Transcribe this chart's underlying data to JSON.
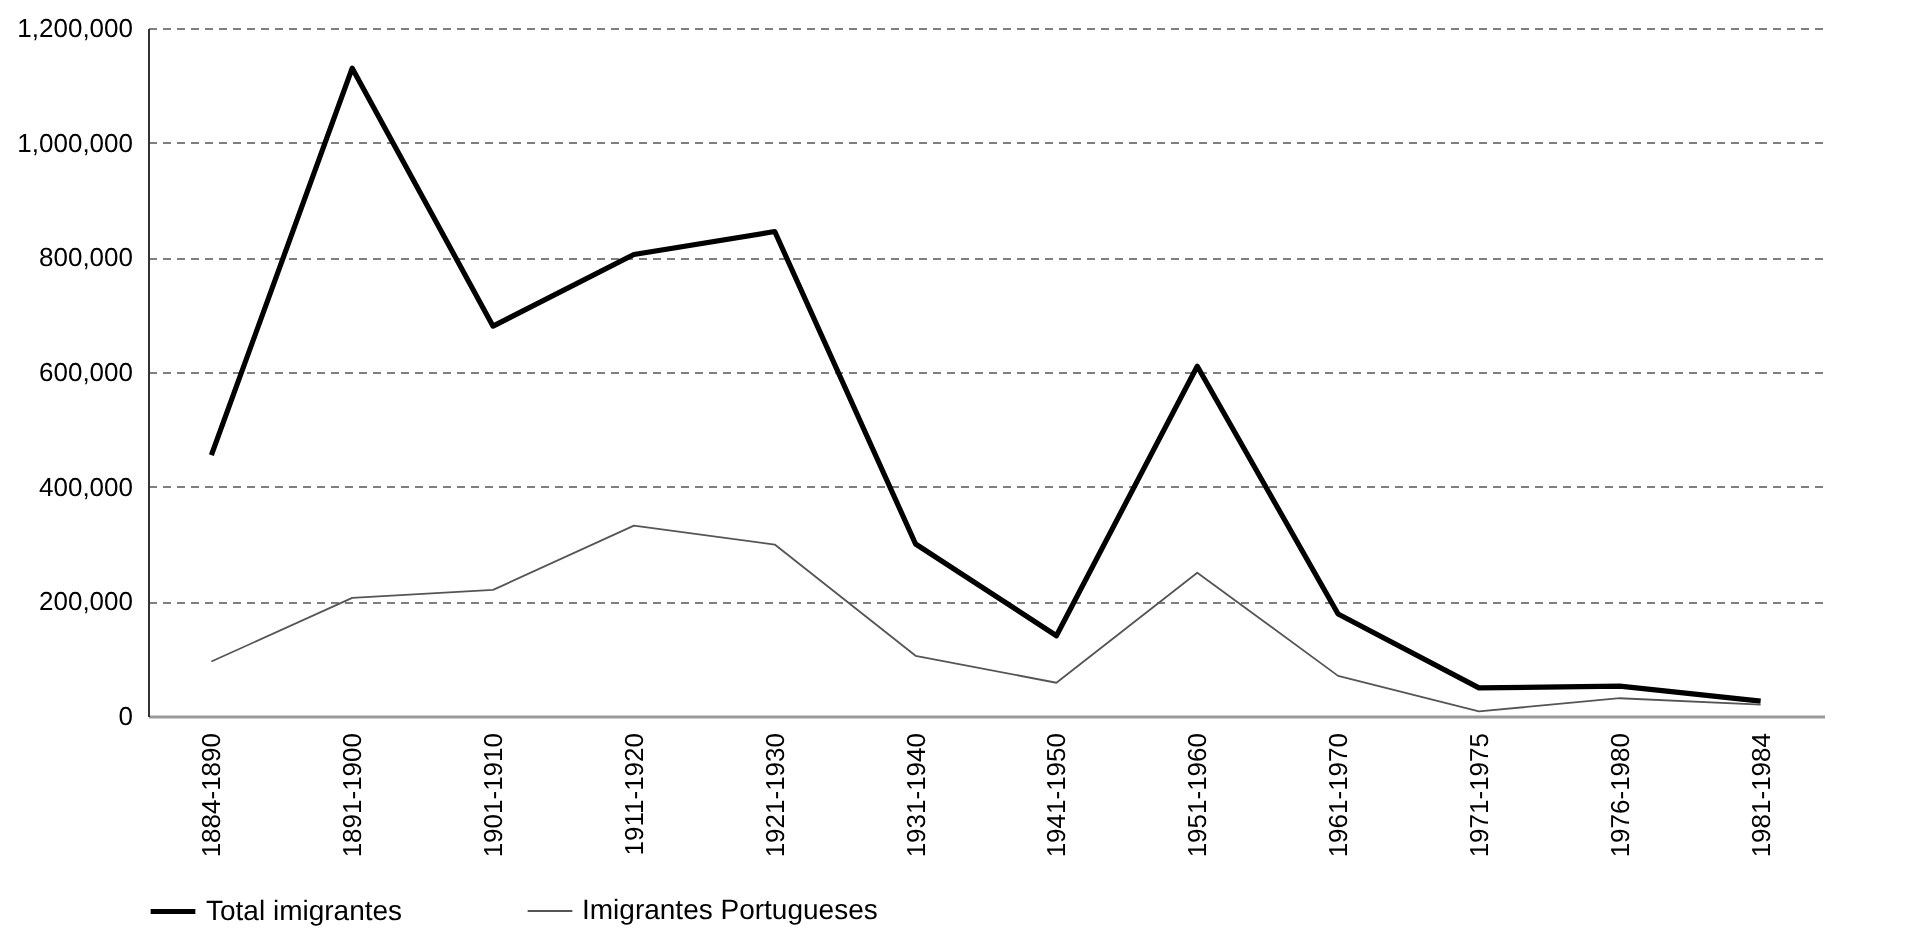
{
  "chart_data": {
    "type": "line",
    "categories": [
      "1884-1890",
      "1891-1900",
      "1901-1910",
      "1911-1920",
      "1921-1930",
      "1931-1940",
      "1941-1950",
      "1951-1960",
      "1961-1970",
      "1971-1975",
      "1976-1980",
      "1981-1984"
    ],
    "series": [
      {
        "name": "Total imigrantes",
        "color": "#000000",
        "values": [
          455000,
          1130000,
          680000,
          805000,
          845000,
          300000,
          140000,
          610000,
          178000,
          49000,
          52000,
          26000
        ]
      },
      {
        "name": "Imigrantes Portugueses",
        "color": "#555555",
        "values": [
          95000,
          206000,
          220000,
          332000,
          299000,
          105000,
          58000,
          250000,
          70000,
          8000,
          31000,
          20000
        ]
      }
    ],
    "ylim": [
      0,
      1200000
    ],
    "yticks": [
      0,
      {
        "value": 200000,
        "label": "200,000"
      },
      {
        "value": 400000,
        "label": "400,000"
      },
      {
        "value": 600000,
        "label": "600,000"
      },
      {
        "value": 800000,
        "label": "800,000"
      },
      {
        "value": 1000000,
        "label": "1,000,000"
      },
      {
        "value": 1200000,
        "label": "1,200,000"
      }
    ],
    "grid": "y",
    "legend": "bottom",
    "marker": "none",
    "line_style": "solid"
  }
}
